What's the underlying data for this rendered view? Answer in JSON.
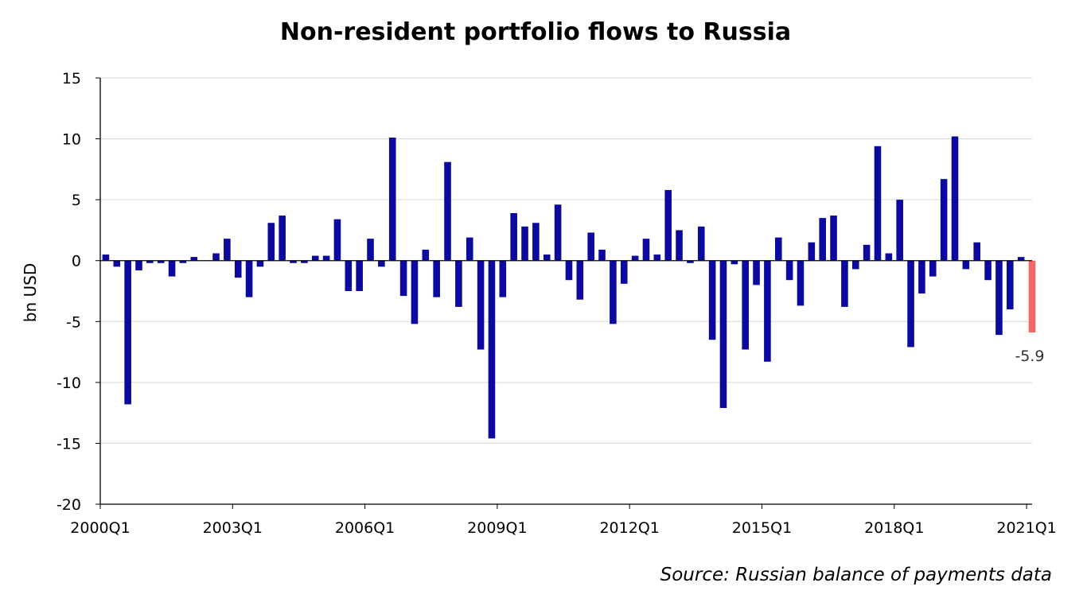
{
  "chart_data": {
    "type": "bar",
    "title": "Non-resident portfolio flows to Russia",
    "ylabel": "bn USD",
    "xlabel": "",
    "ylim": [
      -20,
      15
    ],
    "yticks": [
      15,
      10,
      5,
      0,
      -5,
      -10,
      -15,
      -20
    ],
    "xtick_labels": [
      "2000Q1",
      "2003Q1",
      "2006Q1",
      "2009Q1",
      "2012Q1",
      "2015Q1",
      "2018Q1",
      "2021Q1"
    ],
    "grid": true,
    "categories": [
      "2000Q1",
      "2000Q2",
      "2000Q3",
      "2000Q4",
      "2001Q1",
      "2001Q2",
      "2001Q3",
      "2001Q4",
      "2002Q1",
      "2002Q2",
      "2002Q3",
      "2002Q4",
      "2003Q1",
      "2003Q2",
      "2003Q3",
      "2003Q4",
      "2004Q1",
      "2004Q2",
      "2004Q3",
      "2004Q4",
      "2005Q1",
      "2005Q2",
      "2005Q3",
      "2005Q4",
      "2006Q1",
      "2006Q2",
      "2006Q3",
      "2006Q4",
      "2007Q1",
      "2007Q2",
      "2007Q3",
      "2007Q4",
      "2008Q1",
      "2008Q2",
      "2008Q3",
      "2008Q4",
      "2009Q1",
      "2009Q2",
      "2009Q3",
      "2009Q4",
      "2010Q1",
      "2010Q2",
      "2010Q3",
      "2010Q4",
      "2011Q1",
      "2011Q2",
      "2011Q3",
      "2011Q4",
      "2012Q1",
      "2012Q2",
      "2012Q3",
      "2012Q4",
      "2013Q1",
      "2013Q2",
      "2013Q3",
      "2013Q4",
      "2014Q1",
      "2014Q2",
      "2014Q3",
      "2014Q4",
      "2015Q1",
      "2015Q2",
      "2015Q3",
      "2015Q4",
      "2016Q1",
      "2016Q2",
      "2016Q3",
      "2016Q4",
      "2017Q1",
      "2017Q2",
      "2017Q3",
      "2017Q4",
      "2018Q1",
      "2018Q2",
      "2018Q3",
      "2018Q4",
      "2019Q1",
      "2019Q2",
      "2019Q3",
      "2019Q4",
      "2020Q1",
      "2020Q2",
      "2020Q3",
      "2020Q4",
      "2021Q1"
    ],
    "values": [
      0.5,
      -0.5,
      -11.8,
      -0.8,
      -0.2,
      -0.2,
      -1.3,
      -0.2,
      0.3,
      0.0,
      0.6,
      1.8,
      -1.4,
      -3.0,
      -0.5,
      3.1,
      3.7,
      -0.2,
      -0.2,
      0.4,
      0.4,
      3.4,
      -2.5,
      -2.5,
      1.8,
      -0.5,
      10.1,
      -2.9,
      -5.2,
      0.9,
      -3.0,
      8.1,
      -3.8,
      1.9,
      -7.3,
      -14.6,
      -3.0,
      3.9,
      2.8,
      3.1,
      0.5,
      4.6,
      -1.6,
      -3.2,
      2.3,
      0.9,
      -5.2,
      -1.9,
      0.4,
      1.8,
      0.5,
      5.8,
      2.5,
      -0.2,
      2.8,
      -6.5,
      -12.1,
      -0.3,
      -7.3,
      -2.0,
      -8.3,
      1.9,
      -1.6,
      -3.7,
      1.5,
      3.5,
      3.7,
      -3.8,
      -0.7,
      1.3,
      9.4,
      0.6,
      5.0,
      -7.1,
      -2.7,
      -1.3,
      6.7,
      10.2,
      -0.7,
      1.5,
      -1.6,
      -6.1,
      -4.0,
      0.3,
      -5.9
    ],
    "colors": {
      "bar": "#0b0a9d",
      "highlight_bar": "#f46767",
      "gridline": "#d9d9d9",
      "axis": "#000000"
    },
    "highlight": {
      "index": 84,
      "label": "-5.9"
    },
    "source": "Source: Russian balance of payments data"
  }
}
